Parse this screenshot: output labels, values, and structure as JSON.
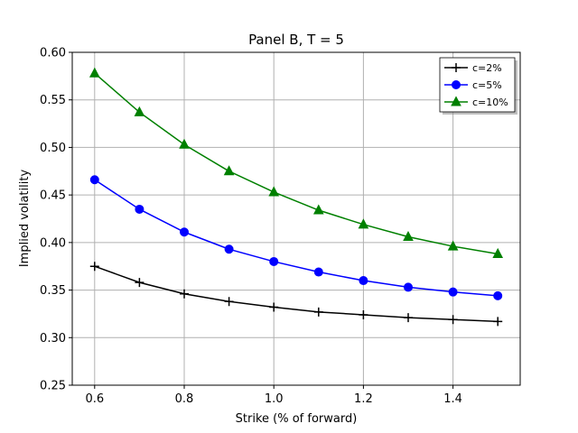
{
  "chart_data": {
    "type": "line",
    "title": "Panel B, T = 5",
    "xlabel": "Strike (% of forward)",
    "ylabel": "Implied volatility",
    "xlim": [
      0.55,
      1.55
    ],
    "ylim": [
      0.25,
      0.6
    ],
    "xticks": [
      "0.6",
      "0.8",
      "1.0",
      "1.2",
      "1.4"
    ],
    "yticks": [
      "0.25",
      "0.30",
      "0.35",
      "0.40",
      "0.45",
      "0.50",
      "0.55",
      "0.60"
    ],
    "grid": true,
    "legend_position": "top-right",
    "x": [
      0.6,
      0.7,
      0.8,
      0.9,
      1.0,
      1.1,
      1.2,
      1.3,
      1.4,
      1.5
    ],
    "series": [
      {
        "name": "c=2%",
        "color": "#000000",
        "marker": "plus",
        "values": [
          0.375,
          0.358,
          0.346,
          0.338,
          0.332,
          0.327,
          0.324,
          0.321,
          0.319,
          0.317
        ]
      },
      {
        "name": "c=5%",
        "color": "#0000ff",
        "marker": "circle",
        "values": [
          0.466,
          0.435,
          0.411,
          0.393,
          0.38,
          0.369,
          0.36,
          0.353,
          0.348,
          0.344
        ]
      },
      {
        "name": "c=10%",
        "color": "#008000",
        "marker": "triangle",
        "values": [
          0.578,
          0.537,
          0.503,
          0.475,
          0.453,
          0.434,
          0.419,
          0.406,
          0.396,
          0.388
        ]
      }
    ]
  }
}
